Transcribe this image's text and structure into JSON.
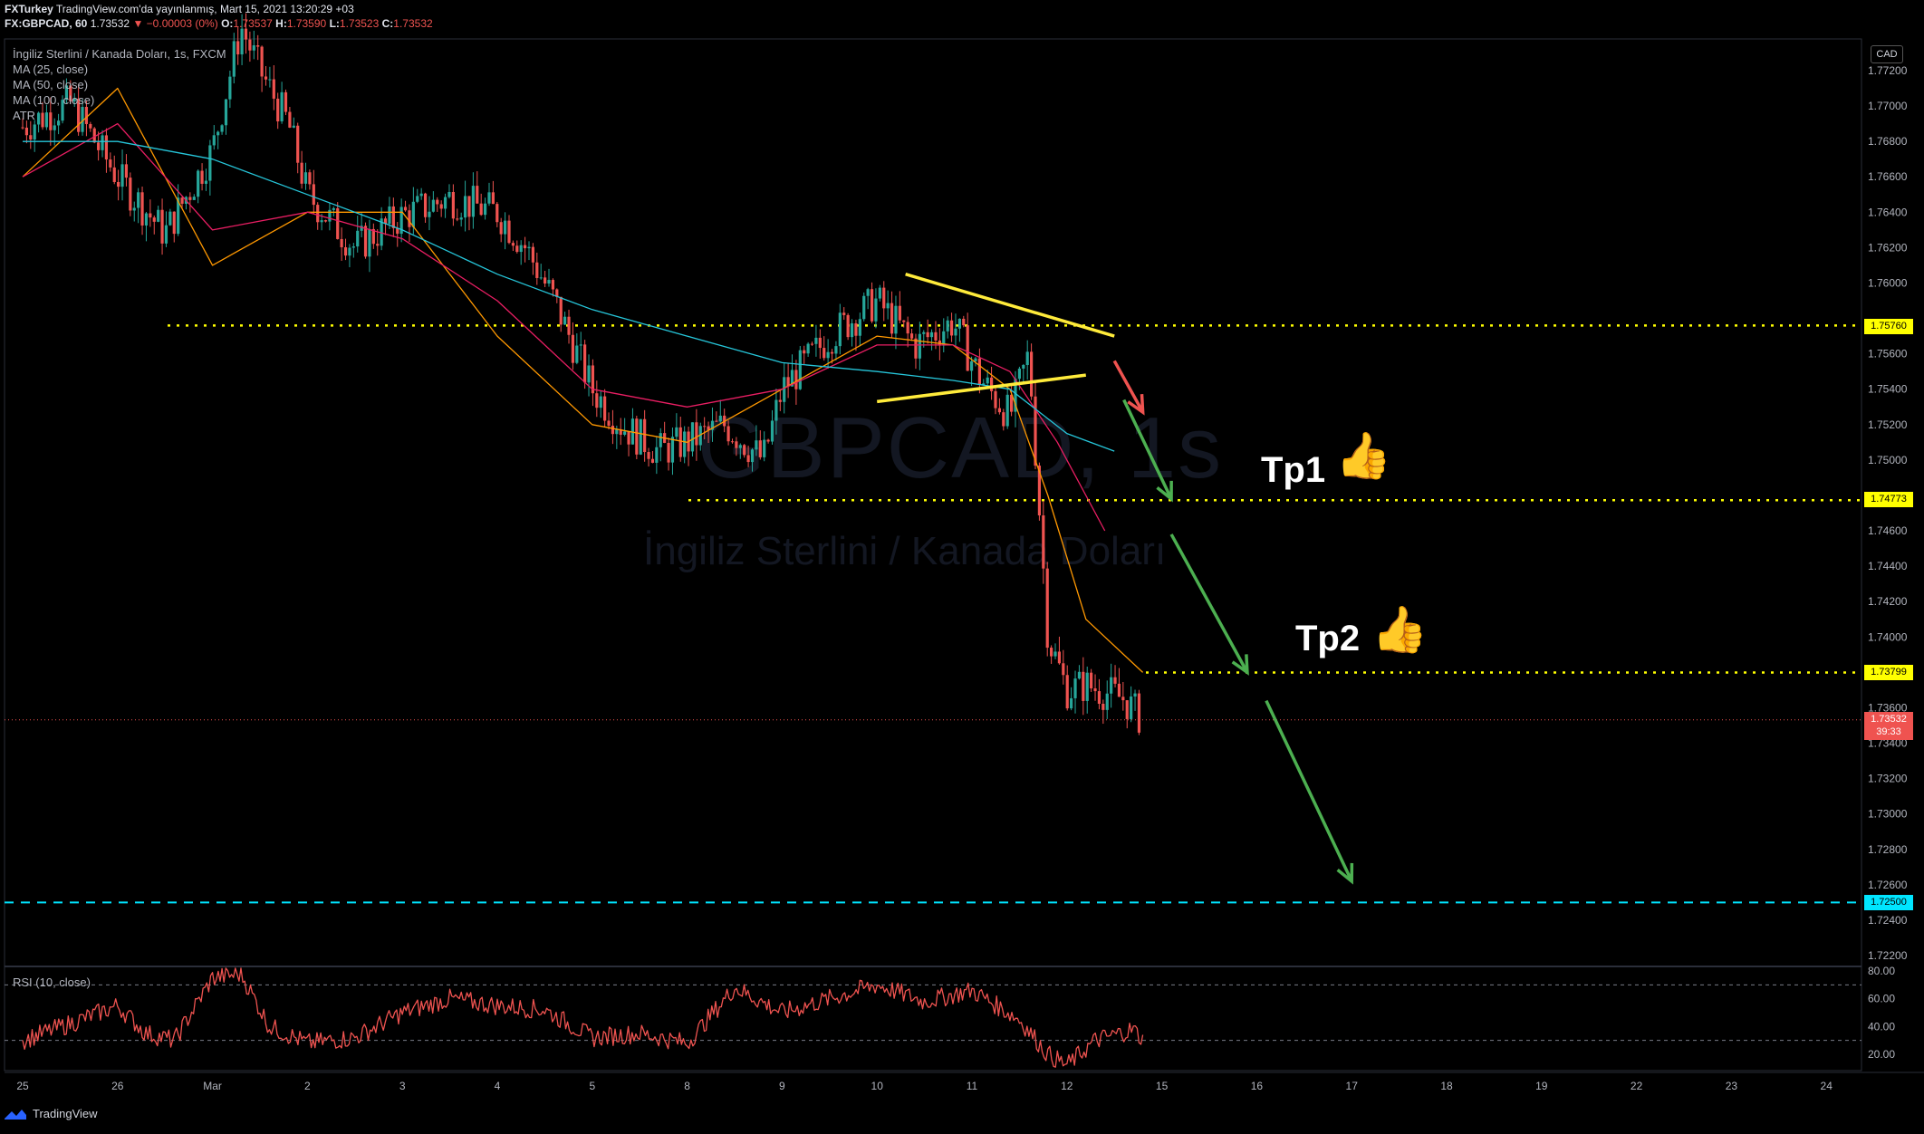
{
  "header": {
    "author": "FXTurkey",
    "published": "TradingView.com'da yayınlanmış, Mart 15, 2021 13:20:29 +03",
    "symbol": "FX:GBPCAD, 60",
    "last": "1.73532",
    "change": "−0.00003 (0%)",
    "open_label": "O:",
    "open": "1.73537",
    "high_label": "H:",
    "high": "1.73590",
    "low_label": "L:",
    "low": "1.73523",
    "close_label": "C:",
    "close": "1.73532"
  },
  "legend": {
    "title": "İngiliz Sterlini / Kanada Doları, 1s, FXCM",
    "ma25": "MA (25, close)",
    "ma50": "MA (50, close)",
    "ma100": "MA (100, close)",
    "atr": "ATR",
    "rsi": "RSI (10, close)"
  },
  "watermark": {
    "symbol": "GBPCAD, 1s",
    "name": "İngiliz Sterlini / Kanada Doları"
  },
  "currency": "CAD",
  "annotations": {
    "tp1": "Tp1",
    "tp2": "Tp2",
    "thumb_icon": "thumbs-up-icon"
  },
  "price_tags": {
    "level1": "1.75760",
    "level2": "1.74773",
    "level3": "1.73799",
    "current": "1.73532",
    "countdown": "39:33",
    "target": "1.72500"
  },
  "colors": {
    "ma25": "#ff9800",
    "ma50": "#e91e63",
    "ma100": "#26c6da",
    "up": "#26a69a",
    "down": "#ef5350",
    "level": "#ffff00",
    "target": "#00e5ff",
    "trendline": "#ffeb3b",
    "arrow": "#4caf50"
  },
  "footer": {
    "brand": "TradingView"
  },
  "chart_data": {
    "type": "candlestick",
    "y_ticks": [
      "1.77200",
      "1.77000",
      "1.76800",
      "1.76600",
      "1.76400",
      "1.76200",
      "1.76000",
      "1.75600",
      "1.75400",
      "1.75200",
      "1.75000",
      "1.74600",
      "1.74400",
      "1.74200",
      "1.74000",
      "1.73600",
      "1.73400",
      "1.73200",
      "1.73000",
      "1.72800",
      "1.72600",
      "1.72400",
      "1.72200"
    ],
    "x_ticks": [
      "25",
      "26",
      "Mar",
      "2",
      "3",
      "4",
      "5",
      "8",
      "9",
      "10",
      "11",
      "12",
      "15",
      "16",
      "17",
      "18",
      "19",
      "22",
      "23",
      "24"
    ],
    "ylim": [
      1.7215,
      1.7735
    ],
    "rsi_ticks": [
      "80.00",
      "60.00",
      "40.00",
      "20.00"
    ],
    "rsi_levels": [
      70,
      30
    ],
    "horizontal_levels": [
      1.7576,
      1.74773,
      1.73799,
      1.725
    ],
    "close_path": [
      [
        0,
        1.7688
      ],
      [
        0.5,
        1.7702
      ],
      [
        1,
        1.766
      ],
      [
        1.5,
        1.7628
      ],
      [
        2,
        1.7675
      ],
      [
        2.3,
        1.7745
      ],
      [
        2.5,
        1.772
      ],
      [
        2.8,
        1.769
      ],
      [
        3,
        1.765
      ],
      [
        3.5,
        1.762
      ],
      [
        4,
        1.7638
      ],
      [
        4.5,
        1.7648
      ],
      [
        5,
        1.764
      ],
      [
        5.3,
        1.762
      ],
      [
        5.6,
        1.759
      ],
      [
        6,
        1.754
      ],
      [
        6.3,
        1.752
      ],
      [
        6.7,
        1.7505
      ],
      [
        7,
        1.751
      ],
      [
        7.4,
        1.752
      ],
      [
        7.8,
        1.75
      ],
      [
        8,
        1.754
      ],
      [
        8.5,
        1.757
      ],
      [
        9,
        1.759
      ],
      [
        9.4,
        1.7565
      ],
      [
        9.8,
        1.7578
      ],
      [
        10.1,
        1.7545
      ],
      [
        10.4,
        1.7525
      ],
      [
        10.6,
        1.756
      ],
      [
        10.8,
        1.74
      ],
      [
        11,
        1.737
      ],
      [
        11.2,
        1.7373
      ],
      [
        11.6,
        1.7365
      ],
      [
        11.8,
        1.7353
      ]
    ],
    "ma25_path": [
      [
        0,
        1.766
      ],
      [
        1,
        1.771
      ],
      [
        2,
        1.761
      ],
      [
        3,
        1.764
      ],
      [
        4,
        1.764
      ],
      [
        5,
        1.757
      ],
      [
        6,
        1.752
      ],
      [
        7,
        1.751
      ],
      [
        8,
        1.754
      ],
      [
        9,
        1.757
      ],
      [
        9.8,
        1.7565
      ],
      [
        10.4,
        1.754
      ],
      [
        10.8,
        1.748
      ],
      [
        11.2,
        1.741
      ],
      [
        11.8,
        1.738
      ]
    ],
    "ma50_path": [
      [
        0,
        1.766
      ],
      [
        1,
        1.769
      ],
      [
        2,
        1.763
      ],
      [
        3,
        1.764
      ],
      [
        4,
        1.7625
      ],
      [
        5,
        1.759
      ],
      [
        6,
        1.754
      ],
      [
        7,
        1.753
      ],
      [
        8,
        1.754
      ],
      [
        9,
        1.7565
      ],
      [
        9.8,
        1.7565
      ],
      [
        10.4,
        1.755
      ],
      [
        10.9,
        1.751
      ],
      [
        11.4,
        1.746
      ]
    ],
    "ma100_path": [
      [
        0,
        1.768
      ],
      [
        1,
        1.768
      ],
      [
        2,
        1.767
      ],
      [
        3,
        1.765
      ],
      [
        4,
        1.763
      ],
      [
        5,
        1.7605
      ],
      [
        6,
        1.7585
      ],
      [
        7,
        1.757
      ],
      [
        8,
        1.7555
      ],
      [
        9,
        1.755
      ],
      [
        9.8,
        1.7545
      ],
      [
        10.4,
        1.754
      ],
      [
        11,
        1.7515
      ],
      [
        11.5,
        1.7505
      ]
    ],
    "rsi_path": [
      [
        0,
        30
      ],
      [
        0.5,
        42
      ],
      [
        1,
        55
      ],
      [
        1.3,
        35
      ],
      [
        1.6,
        30
      ],
      [
        2,
        75
      ],
      [
        2.3,
        78
      ],
      [
        2.6,
        40
      ],
      [
        3,
        28
      ],
      [
        3.5,
        32
      ],
      [
        4,
        50
      ],
      [
        4.5,
        60
      ],
      [
        5,
        55
      ],
      [
        5.5,
        52
      ],
      [
        6,
        32
      ],
      [
        6.5,
        35
      ],
      [
        7,
        28
      ],
      [
        7.5,
        68
      ],
      [
        8,
        50
      ],
      [
        8.5,
        60
      ],
      [
        9,
        70
      ],
      [
        9.5,
        58
      ],
      [
        10,
        66
      ],
      [
        10.5,
        45
      ],
      [
        10.8,
        20
      ],
      [
        11,
        12
      ],
      [
        11.3,
        30
      ],
      [
        11.7,
        38
      ],
      [
        11.8,
        30
      ]
    ],
    "trendlines": [
      [
        [
          9.3,
          1.7605
        ],
        [
          11.5,
          1.757
        ]
      ],
      [
        [
          9.0,
          1.7533
        ],
        [
          11.2,
          1.7548
        ]
      ]
    ],
    "arrows": [
      [
        [
          11.5,
          1.7556
        ],
        [
          11.8,
          1.7527
        ]
      ],
      [
        [
          11.6,
          1.7534
        ],
        [
          12.1,
          1.7478
        ]
      ],
      [
        [
          12.1,
          1.7458
        ],
        [
          12.9,
          1.738
        ]
      ],
      [
        [
          13.1,
          1.7364
        ],
        [
          14.0,
          1.7262
        ]
      ]
    ]
  }
}
